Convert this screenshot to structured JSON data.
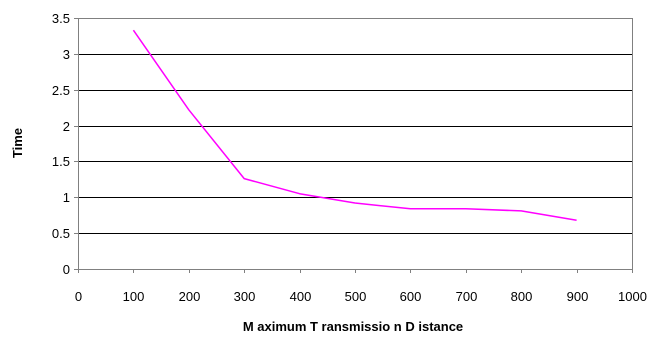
{
  "chart_data": {
    "type": "line",
    "title": "",
    "xlabel": "M aximum  T ransmissio n  D istance",
    "ylabel": "Time",
    "xlim": [
      0,
      1000
    ],
    "ylim": [
      0,
      3.5
    ],
    "x_ticks": [
      0,
      100,
      200,
      300,
      400,
      500,
      600,
      700,
      800,
      900,
      1000
    ],
    "x_tick_labels": [
      "0",
      "100",
      "200",
      "300",
      "400",
      "500",
      "600",
      "700",
      "800",
      "900",
      "1000"
    ],
    "y_ticks": [
      0,
      0.5,
      1,
      1.5,
      2,
      2.5,
      3,
      3.5
    ],
    "y_tick_labels": [
      "0",
      "0.5",
      "1",
      "1.5",
      "2",
      "2.5",
      "3",
      "3.5"
    ],
    "grid": "horizontal",
    "legend": "none",
    "series": [
      {
        "color": "#ff00ff",
        "x": [
          100,
          200,
          300,
          400,
          500,
          600,
          700,
          800,
          900
        ],
        "y": [
          3.33,
          2.22,
          1.26,
          1.05,
          0.92,
          0.84,
          0.84,
          0.81,
          0.68
        ]
      }
    ]
  }
}
